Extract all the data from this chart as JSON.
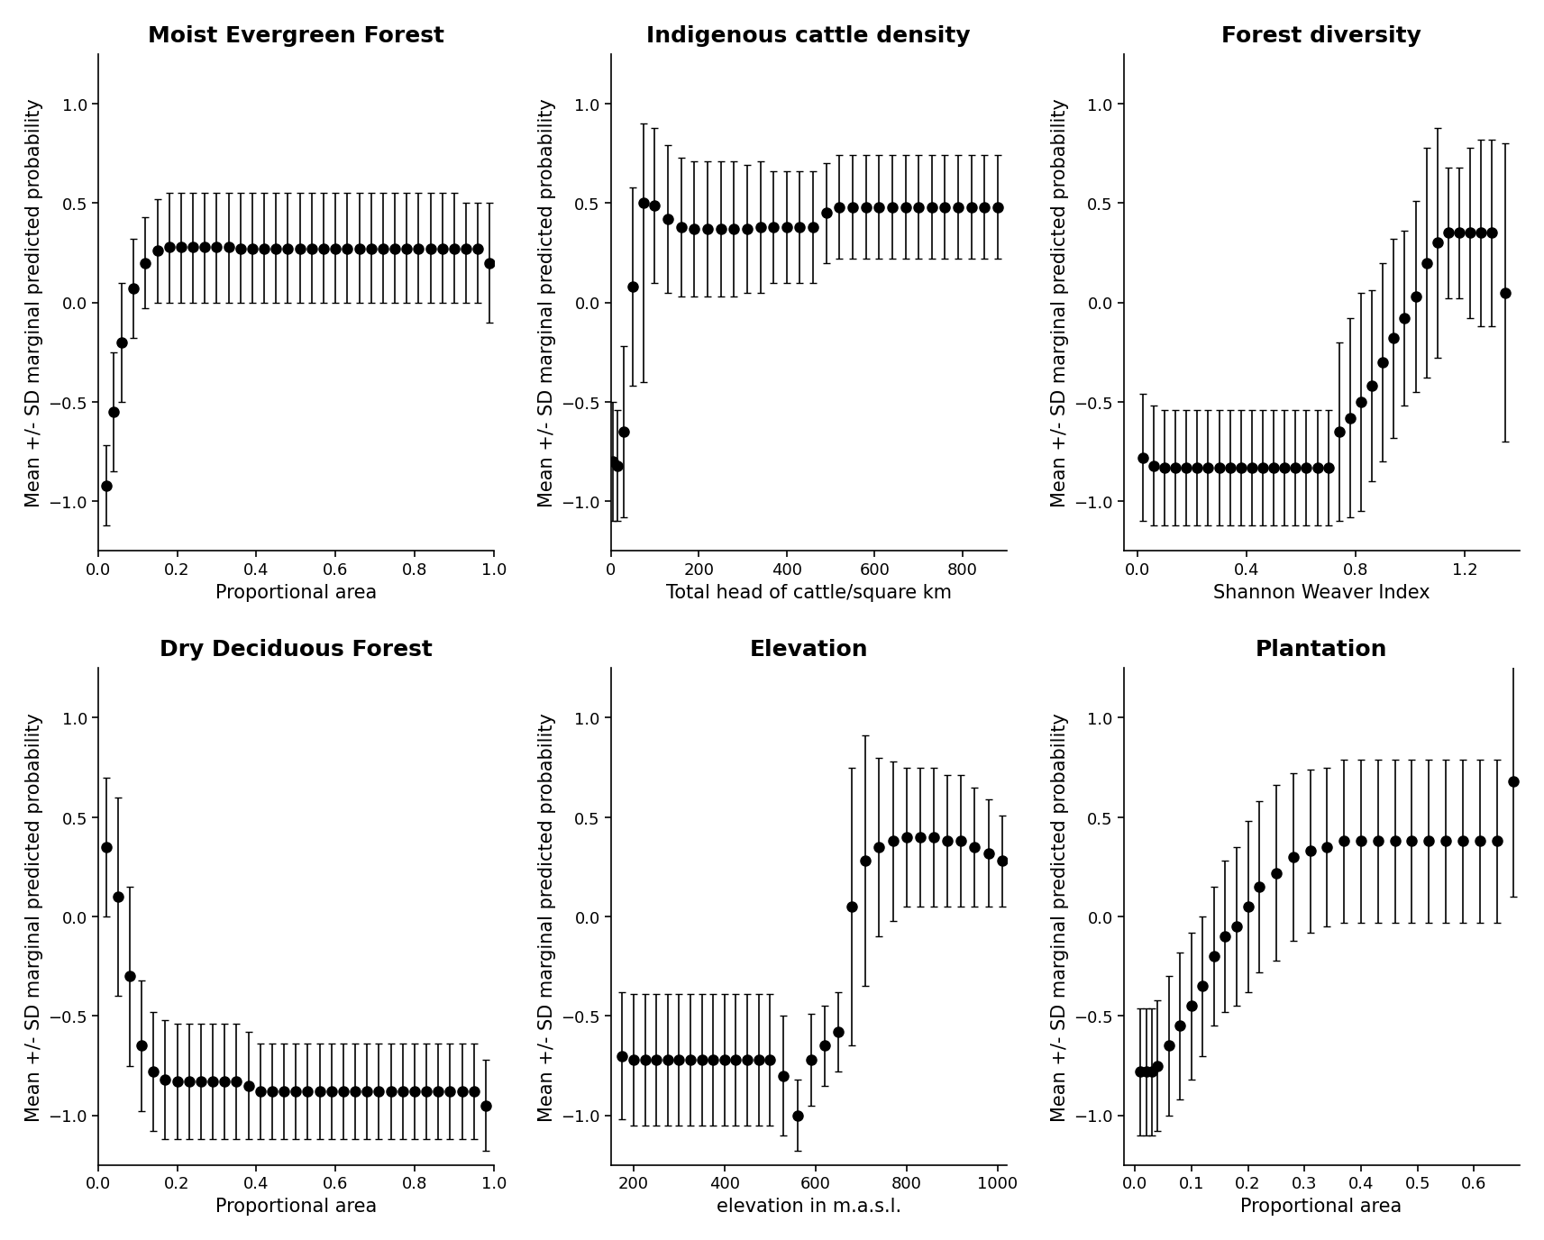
{
  "panels": [
    {
      "title": "Moist Evergreen Forest",
      "xlabel": "Proportional area",
      "ylabel": "Mean +/- SD marginal predicted probability",
      "xlim": [
        0.0,
        1.0
      ],
      "ylim": [
        -1.25,
        1.25
      ],
      "yticks": [
        -1.0,
        -0.5,
        0.0,
        0.5,
        1.0
      ],
      "xticks": [
        0.0,
        0.2,
        0.4,
        0.6,
        0.8,
        1.0
      ],
      "x": [
        0.02,
        0.04,
        0.06,
        0.09,
        0.12,
        0.15,
        0.18,
        0.21,
        0.24,
        0.27,
        0.3,
        0.33,
        0.36,
        0.39,
        0.42,
        0.45,
        0.48,
        0.51,
        0.54,
        0.57,
        0.6,
        0.63,
        0.66,
        0.69,
        0.72,
        0.75,
        0.78,
        0.81,
        0.84,
        0.87,
        0.9,
        0.93,
        0.96,
        0.99
      ],
      "y": [
        -0.92,
        -0.55,
        -0.2,
        0.07,
        0.2,
        0.26,
        0.28,
        0.28,
        0.28,
        0.28,
        0.28,
        0.28,
        0.27,
        0.27,
        0.27,
        0.27,
        0.27,
        0.27,
        0.27,
        0.27,
        0.27,
        0.27,
        0.27,
        0.27,
        0.27,
        0.27,
        0.27,
        0.27,
        0.27,
        0.27,
        0.27,
        0.27,
        0.27,
        0.2
      ],
      "ylo": [
        -1.12,
        -0.85,
        -0.5,
        -0.18,
        -0.03,
        0.0,
        0.0,
        0.0,
        0.0,
        0.0,
        0.0,
        0.0,
        0.0,
        0.0,
        0.0,
        0.0,
        0.0,
        0.0,
        0.0,
        0.0,
        0.0,
        0.0,
        0.0,
        0.0,
        0.0,
        0.0,
        0.0,
        0.0,
        0.0,
        0.0,
        0.0,
        0.0,
        0.0,
        -0.1
      ],
      "yhi": [
        -0.72,
        -0.25,
        0.1,
        0.32,
        0.43,
        0.52,
        0.55,
        0.55,
        0.55,
        0.55,
        0.55,
        0.55,
        0.55,
        0.55,
        0.55,
        0.55,
        0.55,
        0.55,
        0.55,
        0.55,
        0.55,
        0.55,
        0.55,
        0.55,
        0.55,
        0.55,
        0.55,
        0.55,
        0.55,
        0.55,
        0.55,
        0.5,
        0.5,
        0.5
      ]
    },
    {
      "title": "Indigenous cattle density",
      "xlabel": "Total head of cattle/square km",
      "ylabel": "Mean +/- SD marginal predicted probability",
      "xlim": [
        0,
        900
      ],
      "ylim": [
        -1.25,
        1.25
      ],
      "yticks": [
        -1.0,
        -0.5,
        0.0,
        0.5,
        1.0
      ],
      "xticks": [
        0,
        200,
        400,
        600,
        800
      ],
      "x": [
        5,
        15,
        30,
        50,
        75,
        100,
        130,
        160,
        190,
        220,
        250,
        280,
        310,
        340,
        370,
        400,
        430,
        460,
        490,
        520,
        550,
        580,
        610,
        640,
        670,
        700,
        730,
        760,
        790,
        820,
        850,
        880
      ],
      "y": [
        -0.8,
        -0.82,
        -0.65,
        0.08,
        0.5,
        0.49,
        0.42,
        0.38,
        0.37,
        0.37,
        0.37,
        0.37,
        0.37,
        0.38,
        0.38,
        0.38,
        0.38,
        0.38,
        0.45,
        0.48,
        0.48,
        0.48,
        0.48,
        0.48,
        0.48,
        0.48,
        0.48,
        0.48,
        0.48,
        0.48,
        0.48,
        0.48
      ],
      "ylo": [
        -1.1,
        -1.1,
        -1.08,
        -0.42,
        -0.4,
        0.1,
        0.05,
        0.03,
        0.03,
        0.03,
        0.03,
        0.03,
        0.05,
        0.05,
        0.1,
        0.1,
        0.1,
        0.1,
        0.2,
        0.22,
        0.22,
        0.22,
        0.22,
        0.22,
        0.22,
        0.22,
        0.22,
        0.22,
        0.22,
        0.22,
        0.22,
        0.22
      ],
      "yhi": [
        -0.5,
        -0.54,
        -0.22,
        0.58,
        0.9,
        0.88,
        0.79,
        0.73,
        0.71,
        0.71,
        0.71,
        0.71,
        0.69,
        0.71,
        0.66,
        0.66,
        0.66,
        0.66,
        0.7,
        0.74,
        0.74,
        0.74,
        0.74,
        0.74,
        0.74,
        0.74,
        0.74,
        0.74,
        0.74,
        0.74,
        0.74,
        0.74
      ]
    },
    {
      "title": "Forest diversity",
      "xlabel": "Shannon Weaver Index",
      "ylabel": "Mean +/- SD marginal predicted probability",
      "xlim": [
        -0.05,
        1.4
      ],
      "ylim": [
        -1.25,
        1.25
      ],
      "yticks": [
        -1.0,
        -0.5,
        0.0,
        0.5,
        1.0
      ],
      "xticks": [
        0.0,
        0.4,
        0.8,
        1.2
      ],
      "x": [
        0.02,
        0.06,
        0.1,
        0.14,
        0.18,
        0.22,
        0.26,
        0.3,
        0.34,
        0.38,
        0.42,
        0.46,
        0.5,
        0.54,
        0.58,
        0.62,
        0.66,
        0.7,
        0.74,
        0.78,
        0.82,
        0.86,
        0.9,
        0.94,
        0.98,
        1.02,
        1.06,
        1.1,
        1.14,
        1.18,
        1.22,
        1.26,
        1.3,
        1.35
      ],
      "y": [
        -0.78,
        -0.82,
        -0.83,
        -0.83,
        -0.83,
        -0.83,
        -0.83,
        -0.83,
        -0.83,
        -0.83,
        -0.83,
        -0.83,
        -0.83,
        -0.83,
        -0.83,
        -0.83,
        -0.83,
        -0.83,
        -0.65,
        -0.58,
        -0.5,
        -0.42,
        -0.3,
        -0.18,
        -0.08,
        0.03,
        0.2,
        0.3,
        0.35,
        0.35,
        0.35,
        0.35,
        0.35,
        0.05
      ],
      "ylo": [
        -1.1,
        -1.12,
        -1.12,
        -1.12,
        -1.12,
        -1.12,
        -1.12,
        -1.12,
        -1.12,
        -1.12,
        -1.12,
        -1.12,
        -1.12,
        -1.12,
        -1.12,
        -1.12,
        -1.12,
        -1.12,
        -1.1,
        -1.08,
        -1.05,
        -0.9,
        -0.8,
        -0.68,
        -0.52,
        -0.45,
        -0.38,
        -0.28,
        0.02,
        0.02,
        -0.08,
        -0.12,
        -0.12,
        -0.7
      ],
      "yhi": [
        -0.46,
        -0.52,
        -0.54,
        -0.54,
        -0.54,
        -0.54,
        -0.54,
        -0.54,
        -0.54,
        -0.54,
        -0.54,
        -0.54,
        -0.54,
        -0.54,
        -0.54,
        -0.54,
        -0.54,
        -0.54,
        -0.2,
        -0.08,
        0.05,
        0.06,
        0.2,
        0.32,
        0.36,
        0.51,
        0.78,
        0.88,
        0.68,
        0.68,
        0.78,
        0.82,
        0.82,
        0.8
      ]
    },
    {
      "title": "Dry Deciduous Forest",
      "xlabel": "Proportional area",
      "ylabel": "Mean +/- SD marginal predicted probability",
      "xlim": [
        0.0,
        1.0
      ],
      "ylim": [
        -1.25,
        1.25
      ],
      "yticks": [
        -1.0,
        -0.5,
        0.0,
        0.5,
        1.0
      ],
      "xticks": [
        0.0,
        0.2,
        0.4,
        0.6,
        0.8,
        1.0
      ],
      "x": [
        0.02,
        0.05,
        0.08,
        0.11,
        0.14,
        0.17,
        0.2,
        0.23,
        0.26,
        0.29,
        0.32,
        0.35,
        0.38,
        0.41,
        0.44,
        0.47,
        0.5,
        0.53,
        0.56,
        0.59,
        0.62,
        0.65,
        0.68,
        0.71,
        0.74,
        0.77,
        0.8,
        0.83,
        0.86,
        0.89,
        0.92,
        0.95,
        0.98
      ],
      "y": [
        0.35,
        0.1,
        -0.3,
        -0.65,
        -0.78,
        -0.82,
        -0.83,
        -0.83,
        -0.83,
        -0.83,
        -0.83,
        -0.83,
        -0.85,
        -0.88,
        -0.88,
        -0.88,
        -0.88,
        -0.88,
        -0.88,
        -0.88,
        -0.88,
        -0.88,
        -0.88,
        -0.88,
        -0.88,
        -0.88,
        -0.88,
        -0.88,
        -0.88,
        -0.88,
        -0.88,
        -0.88,
        -0.95
      ],
      "ylo": [
        0.0,
        -0.4,
        -0.75,
        -0.98,
        -1.08,
        -1.12,
        -1.12,
        -1.12,
        -1.12,
        -1.12,
        -1.12,
        -1.12,
        -1.12,
        -1.12,
        -1.12,
        -1.12,
        -1.12,
        -1.12,
        -1.12,
        -1.12,
        -1.12,
        -1.12,
        -1.12,
        -1.12,
        -1.12,
        -1.12,
        -1.12,
        -1.12,
        -1.12,
        -1.12,
        -1.12,
        -1.12,
        -1.18
      ],
      "yhi": [
        0.7,
        0.6,
        0.15,
        -0.32,
        -0.48,
        -0.52,
        -0.54,
        -0.54,
        -0.54,
        -0.54,
        -0.54,
        -0.54,
        -0.58,
        -0.64,
        -0.64,
        -0.64,
        -0.64,
        -0.64,
        -0.64,
        -0.64,
        -0.64,
        -0.64,
        -0.64,
        -0.64,
        -0.64,
        -0.64,
        -0.64,
        -0.64,
        -0.64,
        -0.64,
        -0.64,
        -0.64,
        -0.72
      ]
    },
    {
      "title": "Elevation",
      "xlabel": "elevation in m.a.s.l.",
      "ylabel": "Mean +/- SD marginal predicted probability",
      "xlim": [
        150,
        1020
      ],
      "ylim": [
        -1.25,
        1.25
      ],
      "yticks": [
        -1.0,
        -0.5,
        0.0,
        0.5,
        1.0
      ],
      "xticks": [
        200,
        400,
        600,
        800,
        1000
      ],
      "x": [
        175,
        200,
        225,
        250,
        275,
        300,
        325,
        350,
        375,
        400,
        425,
        450,
        475,
        500,
        530,
        560,
        590,
        620,
        650,
        680,
        710,
        740,
        770,
        800,
        830,
        860,
        890,
        920,
        950,
        980,
        1010
      ],
      "y": [
        -0.7,
        -0.72,
        -0.72,
        -0.72,
        -0.72,
        -0.72,
        -0.72,
        -0.72,
        -0.72,
        -0.72,
        -0.72,
        -0.72,
        -0.72,
        -0.72,
        -0.8,
        -1.0,
        -0.72,
        -0.65,
        -0.58,
        0.05,
        0.28,
        0.35,
        0.38,
        0.4,
        0.4,
        0.4,
        0.38,
        0.38,
        0.35,
        0.32,
        0.28
      ],
      "ylo": [
        -1.02,
        -1.05,
        -1.05,
        -1.05,
        -1.05,
        -1.05,
        -1.05,
        -1.05,
        -1.05,
        -1.05,
        -1.05,
        -1.05,
        -1.05,
        -1.05,
        -1.1,
        -1.18,
        -0.95,
        -0.85,
        -0.78,
        -0.65,
        -0.35,
        -0.1,
        -0.02,
        0.05,
        0.05,
        0.05,
        0.05,
        0.05,
        0.05,
        0.05,
        0.05
      ],
      "yhi": [
        -0.38,
        -0.39,
        -0.39,
        -0.39,
        -0.39,
        -0.39,
        -0.39,
        -0.39,
        -0.39,
        -0.39,
        -0.39,
        -0.39,
        -0.39,
        -0.39,
        -0.5,
        -0.82,
        -0.49,
        -0.45,
        -0.38,
        0.75,
        0.91,
        0.8,
        0.78,
        0.75,
        0.75,
        0.75,
        0.71,
        0.71,
        0.65,
        0.59,
        0.51
      ]
    },
    {
      "title": "Plantation",
      "xlabel": "Proportional area",
      "ylabel": "Mean +/- SD marginal predicted probability",
      "xlim": [
        -0.02,
        0.68
      ],
      "ylim": [
        -1.25,
        1.25
      ],
      "yticks": [
        -1.0,
        -0.5,
        0.0,
        0.5,
        1.0
      ],
      "xticks": [
        0.0,
        0.1,
        0.2,
        0.3,
        0.4,
        0.5,
        0.6
      ],
      "x": [
        0.01,
        0.02,
        0.03,
        0.04,
        0.06,
        0.08,
        0.1,
        0.12,
        0.14,
        0.16,
        0.18,
        0.2,
        0.22,
        0.25,
        0.28,
        0.31,
        0.34,
        0.37,
        0.4,
        0.43,
        0.46,
        0.49,
        0.52,
        0.55,
        0.58,
        0.61,
        0.64,
        0.67
      ],
      "y": [
        -0.78,
        -0.78,
        -0.78,
        -0.75,
        -0.65,
        -0.55,
        -0.45,
        -0.35,
        -0.2,
        -0.1,
        -0.05,
        0.05,
        0.15,
        0.22,
        0.3,
        0.33,
        0.35,
        0.38,
        0.38,
        0.38,
        0.38,
        0.38,
        0.38,
        0.38,
        0.38,
        0.38,
        0.38,
        0.68
      ],
      "ylo": [
        -1.1,
        -1.1,
        -1.1,
        -1.08,
        -1.0,
        -0.92,
        -0.82,
        -0.7,
        -0.55,
        -0.48,
        -0.45,
        -0.38,
        -0.28,
        -0.22,
        -0.12,
        -0.08,
        -0.05,
        -0.03,
        -0.03,
        -0.03,
        -0.03,
        -0.03,
        -0.03,
        -0.03,
        -0.03,
        -0.03,
        -0.03,
        0.1
      ],
      "yhi": [
        -0.46,
        -0.46,
        -0.46,
        -0.42,
        -0.3,
        -0.18,
        -0.08,
        0.0,
        0.15,
        0.28,
        0.35,
        0.48,
        0.58,
        0.66,
        0.72,
        0.74,
        0.75,
        0.79,
        0.79,
        0.79,
        0.79,
        0.79,
        0.79,
        0.79,
        0.79,
        0.79,
        0.79,
        1.26
      ]
    }
  ],
  "background_color": "#ffffff",
  "line_color": "#000000",
  "point_color": "#000000",
  "errorbar_color": "#000000",
  "title_fontsize": 18,
  "label_fontsize": 15,
  "tick_fontsize": 13,
  "point_size": 8,
  "linewidth": 1.2,
  "capsize": 3
}
